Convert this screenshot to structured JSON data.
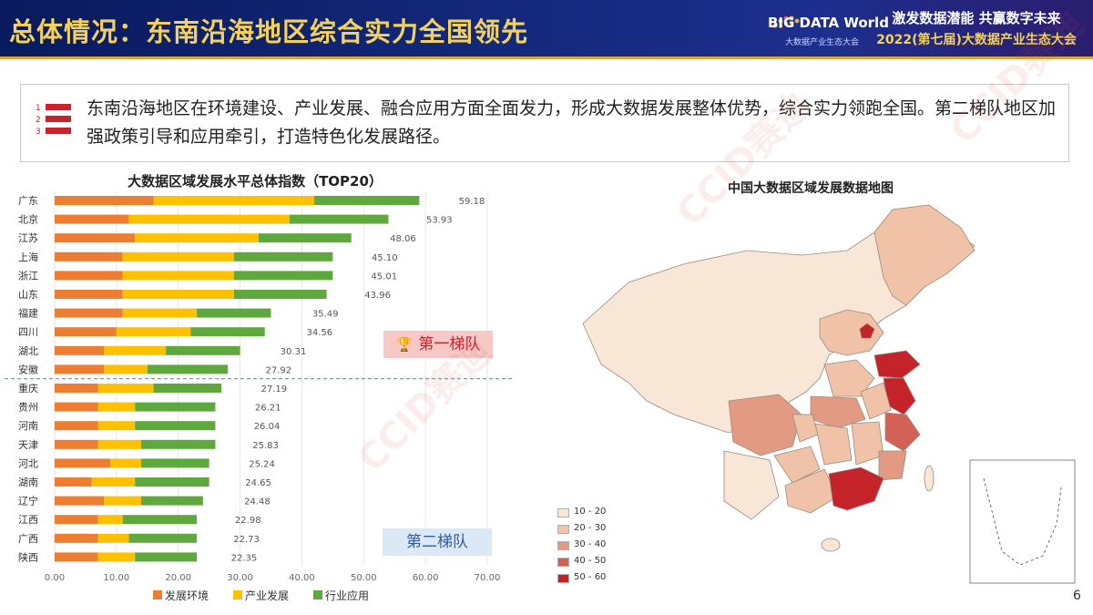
{
  "header": {
    "title": "总体情况：东南沿海地区综合实力全国领先",
    "logo_title": "BIG DATA World",
    "logo_subtitle": "大数据产业生态大会",
    "slogan_line1": "激发数据潜能  共赢数字未来",
    "slogan_line2": "2022(第七届)大数据产业生态大会"
  },
  "summary": {
    "list_markers": [
      "1",
      "2",
      "3"
    ],
    "text": "东南沿海地区在环境建设、产业发展、融合应用方面全面发力，形成大数据发展整体优势，综合实力领跑全国。第二梯队地区加强政策引导和应用牵引，打造特色化发展路径。"
  },
  "tiers": {
    "tier1_label": "第一梯队",
    "tier2_label": "第二梯队"
  },
  "map": {
    "title": "中国大数据区域发展数据地图",
    "legend": [
      {
        "label": "10 - 20",
        "color": "#f8e6d6"
      },
      {
        "label": "20 - 30",
        "color": "#f0c3a8"
      },
      {
        "label": "30 - 40",
        "color": "#e39a82"
      },
      {
        "label": "40 - 50",
        "color": "#d46155"
      },
      {
        "label": "50 - 60",
        "color": "#c4232a"
      }
    ]
  },
  "watermark": "CCID赛迪",
  "page_number": "6",
  "chart_data": {
    "type": "bar",
    "orientation": "horizontal",
    "stacked": true,
    "title": "大数据区域发展水平总体指数（TOP20）",
    "categories": [
      "广东",
      "北京",
      "江苏",
      "上海",
      "浙江",
      "山东",
      "福建",
      "四川",
      "湖北",
      "安徽",
      "重庆",
      "贵州",
      "河南",
      "天津",
      "河北",
      "湖南",
      "辽宁",
      "江西",
      "广西",
      "陕西"
    ],
    "totals": [
      59.18,
      53.93,
      48.06,
      45.1,
      45.01,
      43.96,
      35.49,
      34.56,
      30.31,
      27.92,
      27.19,
      26.21,
      26.04,
      25.83,
      25.24,
      24.65,
      24.48,
      22.98,
      22.73,
      22.35
    ],
    "total_labels": [
      "59.18",
      "53.93",
      "48.06",
      "45.10",
      "45.01",
      "43.96",
      "35.49",
      "34.56",
      "30.31",
      "27.92",
      "27.19",
      "26.21",
      "26.04",
      "25.83",
      "25.24",
      "24.65",
      "24.48",
      "22.98",
      "22.73",
      "22.35"
    ],
    "series": [
      {
        "name": "发展环境",
        "color": "#ed7d31",
        "values": [
          16,
          12,
          13,
          11,
          11,
          11,
          11,
          10,
          8,
          8,
          7,
          7,
          7,
          7,
          9,
          6,
          8,
          7,
          7,
          7
        ]
      },
      {
        "name": "产业发展",
        "color": "#ffc000",
        "values": [
          26,
          26,
          20,
          18,
          18,
          18,
          12,
          12,
          10,
          7,
          9,
          6,
          6,
          7,
          5,
          7,
          6,
          4,
          5,
          6
        ]
      },
      {
        "name": "行业应用",
        "color": "#5fa83e",
        "values": [
          17,
          16,
          15,
          16,
          16,
          15,
          12,
          12,
          12,
          13,
          11,
          13,
          13,
          12,
          11,
          12,
          10,
          12,
          11,
          10
        ]
      }
    ],
    "xlim": [
      0,
      70
    ],
    "x_ticks": [
      "0.00",
      "10.00",
      "20.00",
      "30.00",
      "40.00",
      "50.00",
      "60.00",
      "70.00"
    ],
    "divider_after_index": 9,
    "legend_position": "bottom"
  }
}
